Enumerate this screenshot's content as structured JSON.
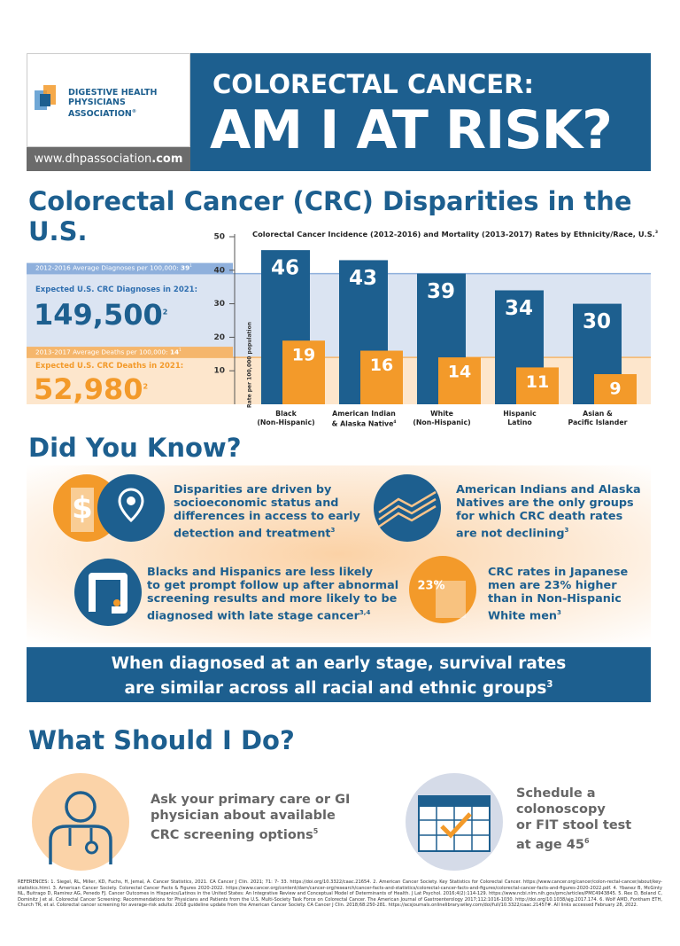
{
  "header": {
    "logo_line1": "DIGESTIVE HEALTH",
    "logo_line2": "PHYSICIANS ASSOCIATION",
    "logo_mark": "®",
    "url_prefix": "www.dhpassociation",
    "url_suffix": ".com",
    "title_line1": "COLORECTAL CANCER:",
    "title_line2": "AM I AT RISK?"
  },
  "disparities": {
    "title": "Colorectal Cancer (CRC) Disparities in the U.S.",
    "diagnoses_label": "Expected U.S. CRC Diagnoses in 2021:",
    "diagnoses_value": "149,500",
    "diagnoses_ref": "2",
    "deaths_label": "Expected U.S. CRC Deaths in 2021:",
    "deaths_value": "52,980",
    "deaths_ref": "2"
  },
  "chart_data": {
    "type": "bar",
    "title": "Colorectal Cancer Incidence (2012-2016) and Mortality (2013-2017) Rates by Ethnicity/Race, U.S.",
    "title_ref": "3",
    "y_label": "Rate per 100,000 population",
    "categories": [
      "Black\n(Non-Hispanic)",
      "American Indian\n& Alaska Native",
      "White\n(Non-Hispanic)",
      "Hispanic\nLatino",
      "Asian &\nPacific Islander"
    ],
    "category_refs": [
      null,
      "4",
      null,
      null,
      null
    ],
    "series": [
      {
        "color": "#1d5f8f",
        "values": [
          46,
          43,
          39,
          34,
          30
        ]
      },
      {
        "color": "#f39a2a",
        "values": [
          19,
          16,
          14,
          11,
          9
        ]
      }
    ],
    "ylim": [
      0,
      50
    ],
    "yticks": [
      10,
      20,
      30,
      40,
      50
    ],
    "reference_lines": [
      {
        "label": "2012-2016 Average Diagnoses per 100,000:",
        "value": 39,
        "ref": "1",
        "color": "#8fb0dc",
        "band": "#dbe4f2"
      },
      {
        "label": "2013-2017 Average Deaths per 100,000:",
        "value": 14,
        "ref": "1",
        "color": "#f5b66c",
        "band": "#fde6cc"
      }
    ]
  },
  "did_you_know": {
    "title": "Did You Know?",
    "items": [
      {
        "text": "Disparities are driven by\nsocioeconomic status and\ndifferences in access to early\ndetection and treatment",
        "ref": "3"
      },
      {
        "text": "American Indians and Alaska\nNatives are the only groups\nfor which CRC death rates\nare not declining",
        "ref": "3"
      },
      {
        "text": "Blacks and Hispanics are less likely\nto get prompt follow up after abnormal\nscreening results and more likely to be\ndiagnosed with late stage cancer",
        "ref": "3,4"
      },
      {
        "text": "CRC rates in Japanese\nmen are 23% higher\nthan in Non-Hispanic\nWhite men",
        "ref": "3"
      }
    ],
    "icon_percent": "23%"
  },
  "banner": {
    "text": "When diagnosed at an early stage, survival rates\nare similar across all racial and ethnic groups",
    "ref": "3"
  },
  "what_should_i_do": {
    "title": "What Should I Do?",
    "items": [
      {
        "text": "Ask your primary care or GI\nphysician about available\nCRC screening options",
        "ref": "5"
      },
      {
        "text": "Schedule a\ncolonoscopy\nor FIT stool test\nat age 45",
        "ref": "6"
      }
    ]
  },
  "references": "REFERENCES: 1. Siegel, RL, Miller, KD, Fuchs, H, Jemal, A. Cancer Statistics, 2021. CA Cancer J Clin. 2021; 71: 7- 33. https://doi.org/10.3322/caac.21654. 2. American Cancer Society. Key Statistics for Colorectal Cancer. https://www.cancer.org/cancer/colon-rectal-cancer/about/key-statistics.html. 3. American Cancer Society. Colorectal Cancer Facts & Figures 2020-2022. https://www.cancer.org/content/dam/cancer-org/research/cancer-facts-and-statistics/colorectal-cancer-facts-and-figures/colorectal-cancer-facts-and-figures-2020-2022.pdf. 4. Ybanez B, McGinty NL, Buitrago D, Ramirez AG, Penedo FJ. Cancer Outcomes in Hispanics/Latinos in the United States: An Integrative Review and Conceptual Model of Determinants of Health. J Lat Psychol. 2016;4(2):114-129. https://www.ncbi.nlm.nih.gov/pmc/articles/PMC4943845. 5. Rex D, Boland C, Dominitz J et al. Colorectal Cancer Screening: Recommendations for Physicians and Patients from the U.S. Multi-Society Task Force on Colorectal Cancer. The American Journal of Gastroenterology 2017;112:1016-1030. http://doi.org/10.1038/ajg.2017.174. 6. Wolf AMD, Fontham ETH, Church TR, et al. Colorectal cancer screening for average-risk adults: 2018 guideline update from the American Cancer Society. CA Cancer J Clin. 2018;68:250-281. https://acsjournals.onlinelibrary.wiley.com/doi/full/10.3322/caac.21457#. All links accessed February 28, 2022."
}
